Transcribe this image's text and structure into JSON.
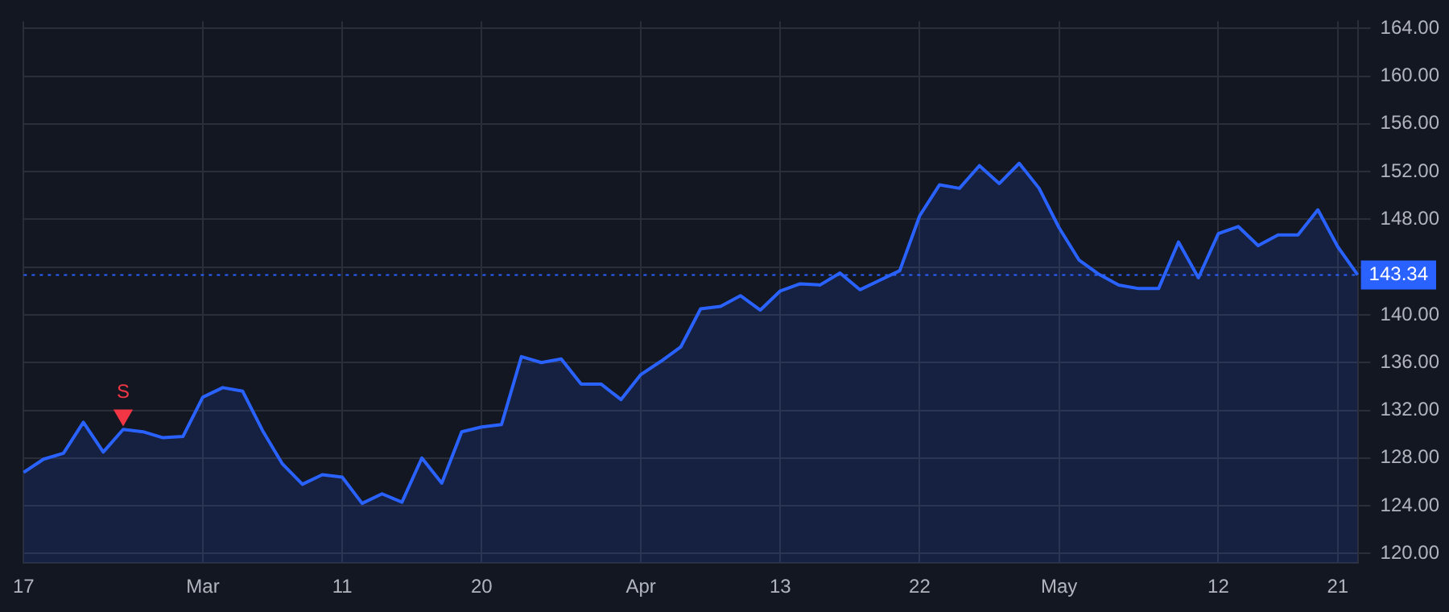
{
  "chart_data": {
    "type": "area",
    "marker": "none",
    "grid": true,
    "categories": [
      "17",
      null,
      null,
      null,
      null,
      null,
      null,
      null,
      null,
      "Mar",
      null,
      null,
      null,
      null,
      null,
      null,
      "11",
      null,
      null,
      null,
      null,
      null,
      null,
      "20",
      null,
      null,
      null,
      null,
      null,
      null,
      null,
      "Apr",
      null,
      null,
      null,
      null,
      null,
      null,
      "13",
      null,
      null,
      null,
      null,
      null,
      null,
      "22",
      null,
      null,
      null,
      null,
      null,
      null,
      "May",
      null,
      null,
      null,
      null,
      null,
      null,
      null,
      "12",
      null,
      null,
      null,
      null,
      null,
      "21",
      null
    ],
    "series": [
      {
        "color": "#2962ff",
        "values": [
          126.8,
          127.9,
          128.4,
          131.0,
          128.5,
          130.4,
          130.2,
          129.7,
          129.8,
          133.1,
          133.9,
          133.6,
          130.3,
          127.5,
          125.8,
          126.6,
          126.4,
          124.2,
          125.0,
          124.3,
          128.0,
          125.9,
          130.2,
          130.6,
          130.8,
          136.5,
          136.0,
          136.3,
          134.2,
          134.2,
          132.9,
          135.0,
          136.1,
          137.3,
          140.5,
          140.7,
          141.6,
          140.4,
          142.0,
          142.6,
          142.5,
          143.5,
          142.1,
          142.9,
          143.7,
          148.3,
          150.9,
          150.6,
          152.5,
          151.0,
          152.7,
          150.6,
          147.3,
          144.6,
          143.4,
          142.5,
          142.2,
          142.2,
          146.1,
          143.1,
          146.8,
          147.4,
          145.8,
          146.7,
          146.7,
          148.8,
          145.7,
          143.34
        ]
      },
      {
        "type": "scatter",
        "marker": "triangle",
        "color": "#f23645",
        "values": [
          null,
          null,
          null,
          null,
          null,
          131.6,
          null,
          null,
          null,
          null,
          null,
          null,
          null,
          null,
          null,
          null,
          null,
          null,
          null,
          null,
          null,
          null,
          null,
          null,
          null,
          null,
          null,
          null,
          null,
          null,
          null,
          null,
          null,
          null,
          null,
          null,
          null,
          null,
          null,
          null,
          null,
          null,
          null,
          null,
          null,
          null,
          null,
          null,
          null,
          null,
          null,
          null,
          null,
          null,
          null,
          null,
          null,
          null,
          null,
          null,
          null,
          null,
          null,
          null,
          null,
          null,
          null,
          null
        ]
      }
    ],
    "ylim": [
      119.2,
      164.6
    ],
    "yticks": [
      {
        "value": 120,
        "label": "120.00"
      },
      {
        "value": 124,
        "label": "124.00"
      },
      {
        "value": 128,
        "label": "128.00"
      },
      {
        "value": 132,
        "label": "132.00"
      },
      {
        "value": 136,
        "label": "136.00"
      },
      {
        "value": 140,
        "label": "140.00"
      },
      {
        "value": 144,
        "label": null
      },
      {
        "value": 148,
        "label": "148.00"
      },
      {
        "value": 152,
        "label": "152.00"
      },
      {
        "value": 156,
        "label": "156.00"
      },
      {
        "value": 160,
        "label": "160.00"
      },
      {
        "value": 164,
        "label": "164.00"
      }
    ],
    "ref_lines": [
      {
        "axis": "y",
        "value": 143.34,
        "label": "143.34",
        "color": "#2962ff",
        "line_style": "dotted"
      }
    ],
    "annotations": [
      "S"
    ]
  }
}
